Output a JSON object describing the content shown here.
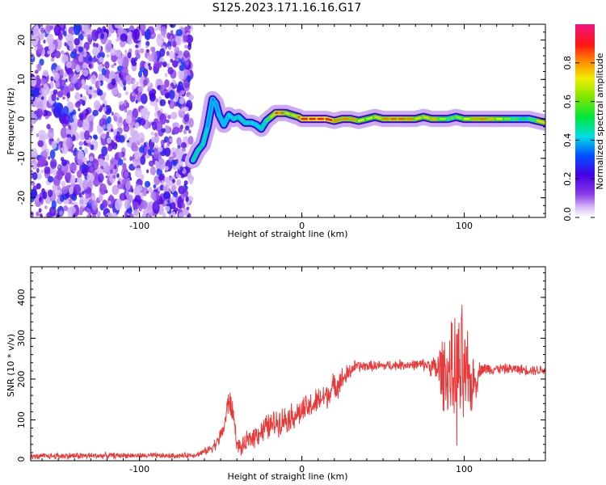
{
  "title": "S125.2023.171.16.16.G17",
  "chart_data": [
    {
      "type": "heatmap",
      "title": "S125.2023.171.16.16.G17",
      "xlabel": "Height of straight line (km)",
      "ylabel": "Frequency (Hz)",
      "xlim": [
        -167,
        150
      ],
      "ylim": [
        -25,
        24
      ],
      "x_ticks": [
        -100,
        0,
        100
      ],
      "y_ticks": [
        -20,
        -10,
        0,
        10,
        20
      ],
      "x_tick_labels": [
        "-100",
        "0",
        "100"
      ],
      "y_tick_labels": [
        "-20",
        "-10",
        "0",
        "10",
        "20"
      ],
      "colorbar": {
        "label": "Normalized spectral amplitude",
        "range": [
          0.0,
          1.0
        ],
        "ticks": [
          0.0,
          0.2,
          0.4,
          0.6,
          0.8
        ],
        "tick_labels": [
          "0.0",
          "0.2",
          "0.4",
          "0.6",
          "0.8"
        ]
      },
      "noise_region": {
        "x_from": -167,
        "x_to": -68,
        "amplitude_range": [
          0.05,
          0.3
        ]
      },
      "ridge": {
        "x": [
          -67,
          -64,
          -61,
          -58,
          -55,
          -53,
          -51,
          -48,
          -45,
          -42,
          -39,
          -35,
          -31,
          -28,
          -25,
          -22,
          -19,
          -16,
          -13,
          -10,
          -6,
          -2,
          0,
          5,
          10,
          15,
          20,
          25,
          30,
          35,
          40,
          45,
          50,
          55,
          60,
          65,
          70,
          75,
          80,
          85,
          90,
          95,
          100,
          105,
          110,
          115,
          120,
          125,
          130,
          135,
          140,
          145,
          150
        ],
        "y": [
          -10.5,
          -8,
          -6.5,
          -2,
          5,
          4,
          1,
          -1.5,
          1,
          0,
          0.5,
          -1,
          -1,
          -1.5,
          -2.5,
          -0.5,
          0.5,
          1.5,
          1.5,
          1.5,
          1,
          0.5,
          0,
          0,
          0,
          0,
          -0.5,
          0,
          0,
          -0.5,
          0,
          0.5,
          0,
          0,
          0,
          0,
          0,
          0.5,
          0,
          0,
          0,
          0.5,
          0,
          0,
          0,
          0,
          0,
          0,
          0,
          0,
          0,
          -0.5,
          -1
        ],
        "amp": [
          0.45,
          0.5,
          0.5,
          0.4,
          0.35,
          0.35,
          0.4,
          0.4,
          0.4,
          0.45,
          0.45,
          0.45,
          0.45,
          0.4,
          0.45,
          0.5,
          0.65,
          0.85,
          0.9,
          0.8,
          0.7,
          0.8,
          0.9,
          0.9,
          0.95,
          0.95,
          0.85,
          0.8,
          0.85,
          0.75,
          0.7,
          0.7,
          0.8,
          0.85,
          0.85,
          0.85,
          0.8,
          0.7,
          0.8,
          0.75,
          0.6,
          0.6,
          0.7,
          0.75,
          0.85,
          0.8,
          0.75,
          0.7,
          0.6,
          0.55,
          0.5,
          0.65,
          0.85
        ]
      }
    },
    {
      "type": "line",
      "xlabel": "Height of straight line (km)",
      "ylabel": "SNR (10 * v/v)",
      "xlim": [
        -167,
        150
      ],
      "ylim": [
        0,
        475
      ],
      "x_ticks": [
        -100,
        0,
        100
      ],
      "y_ticks": [
        0,
        100,
        200,
        300,
        400
      ],
      "x_tick_labels": [
        "-100",
        "0",
        "100"
      ],
      "y_tick_labels": [
        "0",
        "100",
        "200",
        "300",
        "400"
      ],
      "line_color": "#e83a3a",
      "series": [
        {
          "x": [
            -167,
            -150,
            -130,
            -110,
            -90,
            -75,
            -65,
            -58,
            -52,
            -48,
            -45,
            -42,
            -40,
            -37,
            -33,
            -28,
            -22,
            -15,
            -8,
            0,
            8,
            15,
            22,
            28,
            32,
            40,
            50,
            60,
            70,
            78,
            82,
            86,
            90,
            93,
            96,
            99,
            101,
            104,
            107,
            110,
            120,
            130,
            140,
            150
          ],
          "y": [
            10,
            12,
            12,
            13,
            12,
            12,
            15,
            25,
            45,
            80,
            150,
            110,
            40,
            30,
            50,
            65,
            80,
            95,
            105,
            120,
            140,
            160,
            190,
            210,
            230,
            232,
            232,
            235,
            235,
            235,
            225,
            220,
            215,
            210,
            205,
            210,
            200,
            190,
            195,
            225,
            225,
            225,
            222,
            222
          ],
          "spread": [
            8,
            10,
            10,
            8,
            8,
            8,
            8,
            12,
            20,
            25,
            40,
            35,
            20,
            25,
            30,
            35,
            40,
            40,
            40,
            40,
            40,
            40,
            40,
            30,
            20,
            15,
            15,
            15,
            15,
            20,
            40,
            100,
            120,
            150,
            200,
            200,
            150,
            100,
            60,
            20,
            15,
            15,
            15,
            15
          ]
        }
      ]
    }
  ]
}
